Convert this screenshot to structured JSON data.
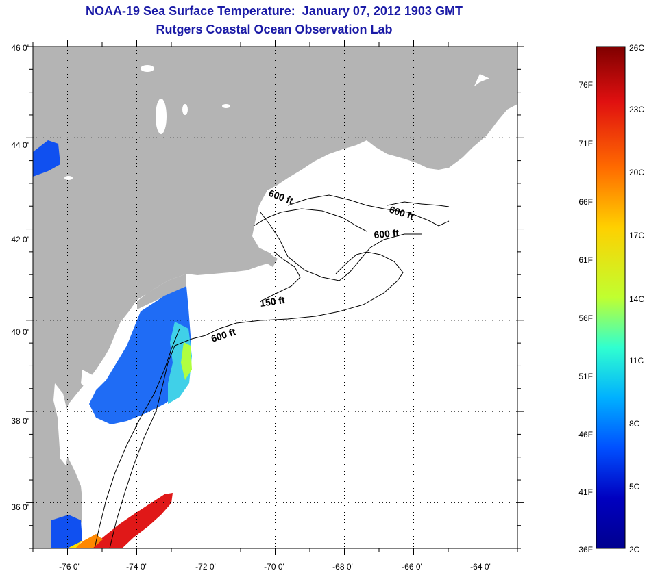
{
  "title_line1": "NOAA-19 Sea Surface Temperature:  January 07, 2012 1903 GMT",
  "title_line2": "Rutgers Coastal Ocean Observation Lab",
  "map": {
    "lon_range": [
      -77,
      -63
    ],
    "lat_range": [
      35,
      46
    ],
    "lon_ticks": [
      "-76 0'",
      "-74 0'",
      "-72 0'",
      "-70 0'",
      "-68 0'",
      "-66 0'",
      "-64 0'"
    ],
    "lat_ticks": [
      "46 0'",
      "44 0'",
      "42 0'",
      "40 0'",
      "38 0'",
      "36 0'"
    ],
    "land_color": "#b4b4b4",
    "water_color": "#ffffff",
    "grid": "dotted",
    "contour_labels": [
      "600 ft",
      "600 ft",
      "600 ft",
      "150 ft",
      "600 ft"
    ]
  },
  "colorbar": {
    "celsius_labels": [
      "26C",
      "23C",
      "20C",
      "17C",
      "14C",
      "11C",
      "8C",
      "5C",
      "2C"
    ],
    "fahrenheit_labels": [
      "76F",
      "71F",
      "66F",
      "61F",
      "56F",
      "51F",
      "46F",
      "41F",
      "36F"
    ],
    "stops": [
      "#7f0000",
      "#e01010",
      "#ff6a00",
      "#ffd000",
      "#c0ff30",
      "#30ffd0",
      "#00b0ff",
      "#0050ff",
      "#0000c0",
      "#00008f"
    ]
  }
}
